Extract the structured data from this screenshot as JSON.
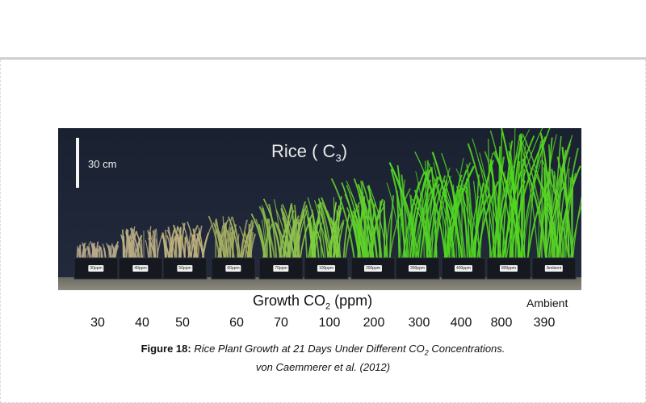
{
  "photo": {
    "title_main": "Rice ( C",
    "title_sub": "3",
    "title_close": ")",
    "scale_bar_label": "30 cm",
    "pot_labels": [
      "30ppm",
      "40ppm",
      "50ppm",
      "60ppm",
      "70ppm",
      "100ppm",
      "200ppm",
      "300ppm",
      "400ppm",
      "800ppm",
      "Ambient"
    ]
  },
  "axis": {
    "title_main": "Growth CO",
    "title_sub": "2",
    "title_unit": " (ppm)",
    "ambient": "Ambient",
    "ticks": [
      "30",
      "40",
      "50",
      "60",
      "70",
      "100",
      "200",
      "300",
      "400",
      "800",
      "390"
    ]
  },
  "caption": {
    "figure_label": "Figure 18:",
    "title_part1": " Rice Plant Growth at 21 Days Under Different CO",
    "title_sub": "2",
    "title_part2": " Concentrations.",
    "citation": "von Caemmerer et al. (2012)"
  }
}
